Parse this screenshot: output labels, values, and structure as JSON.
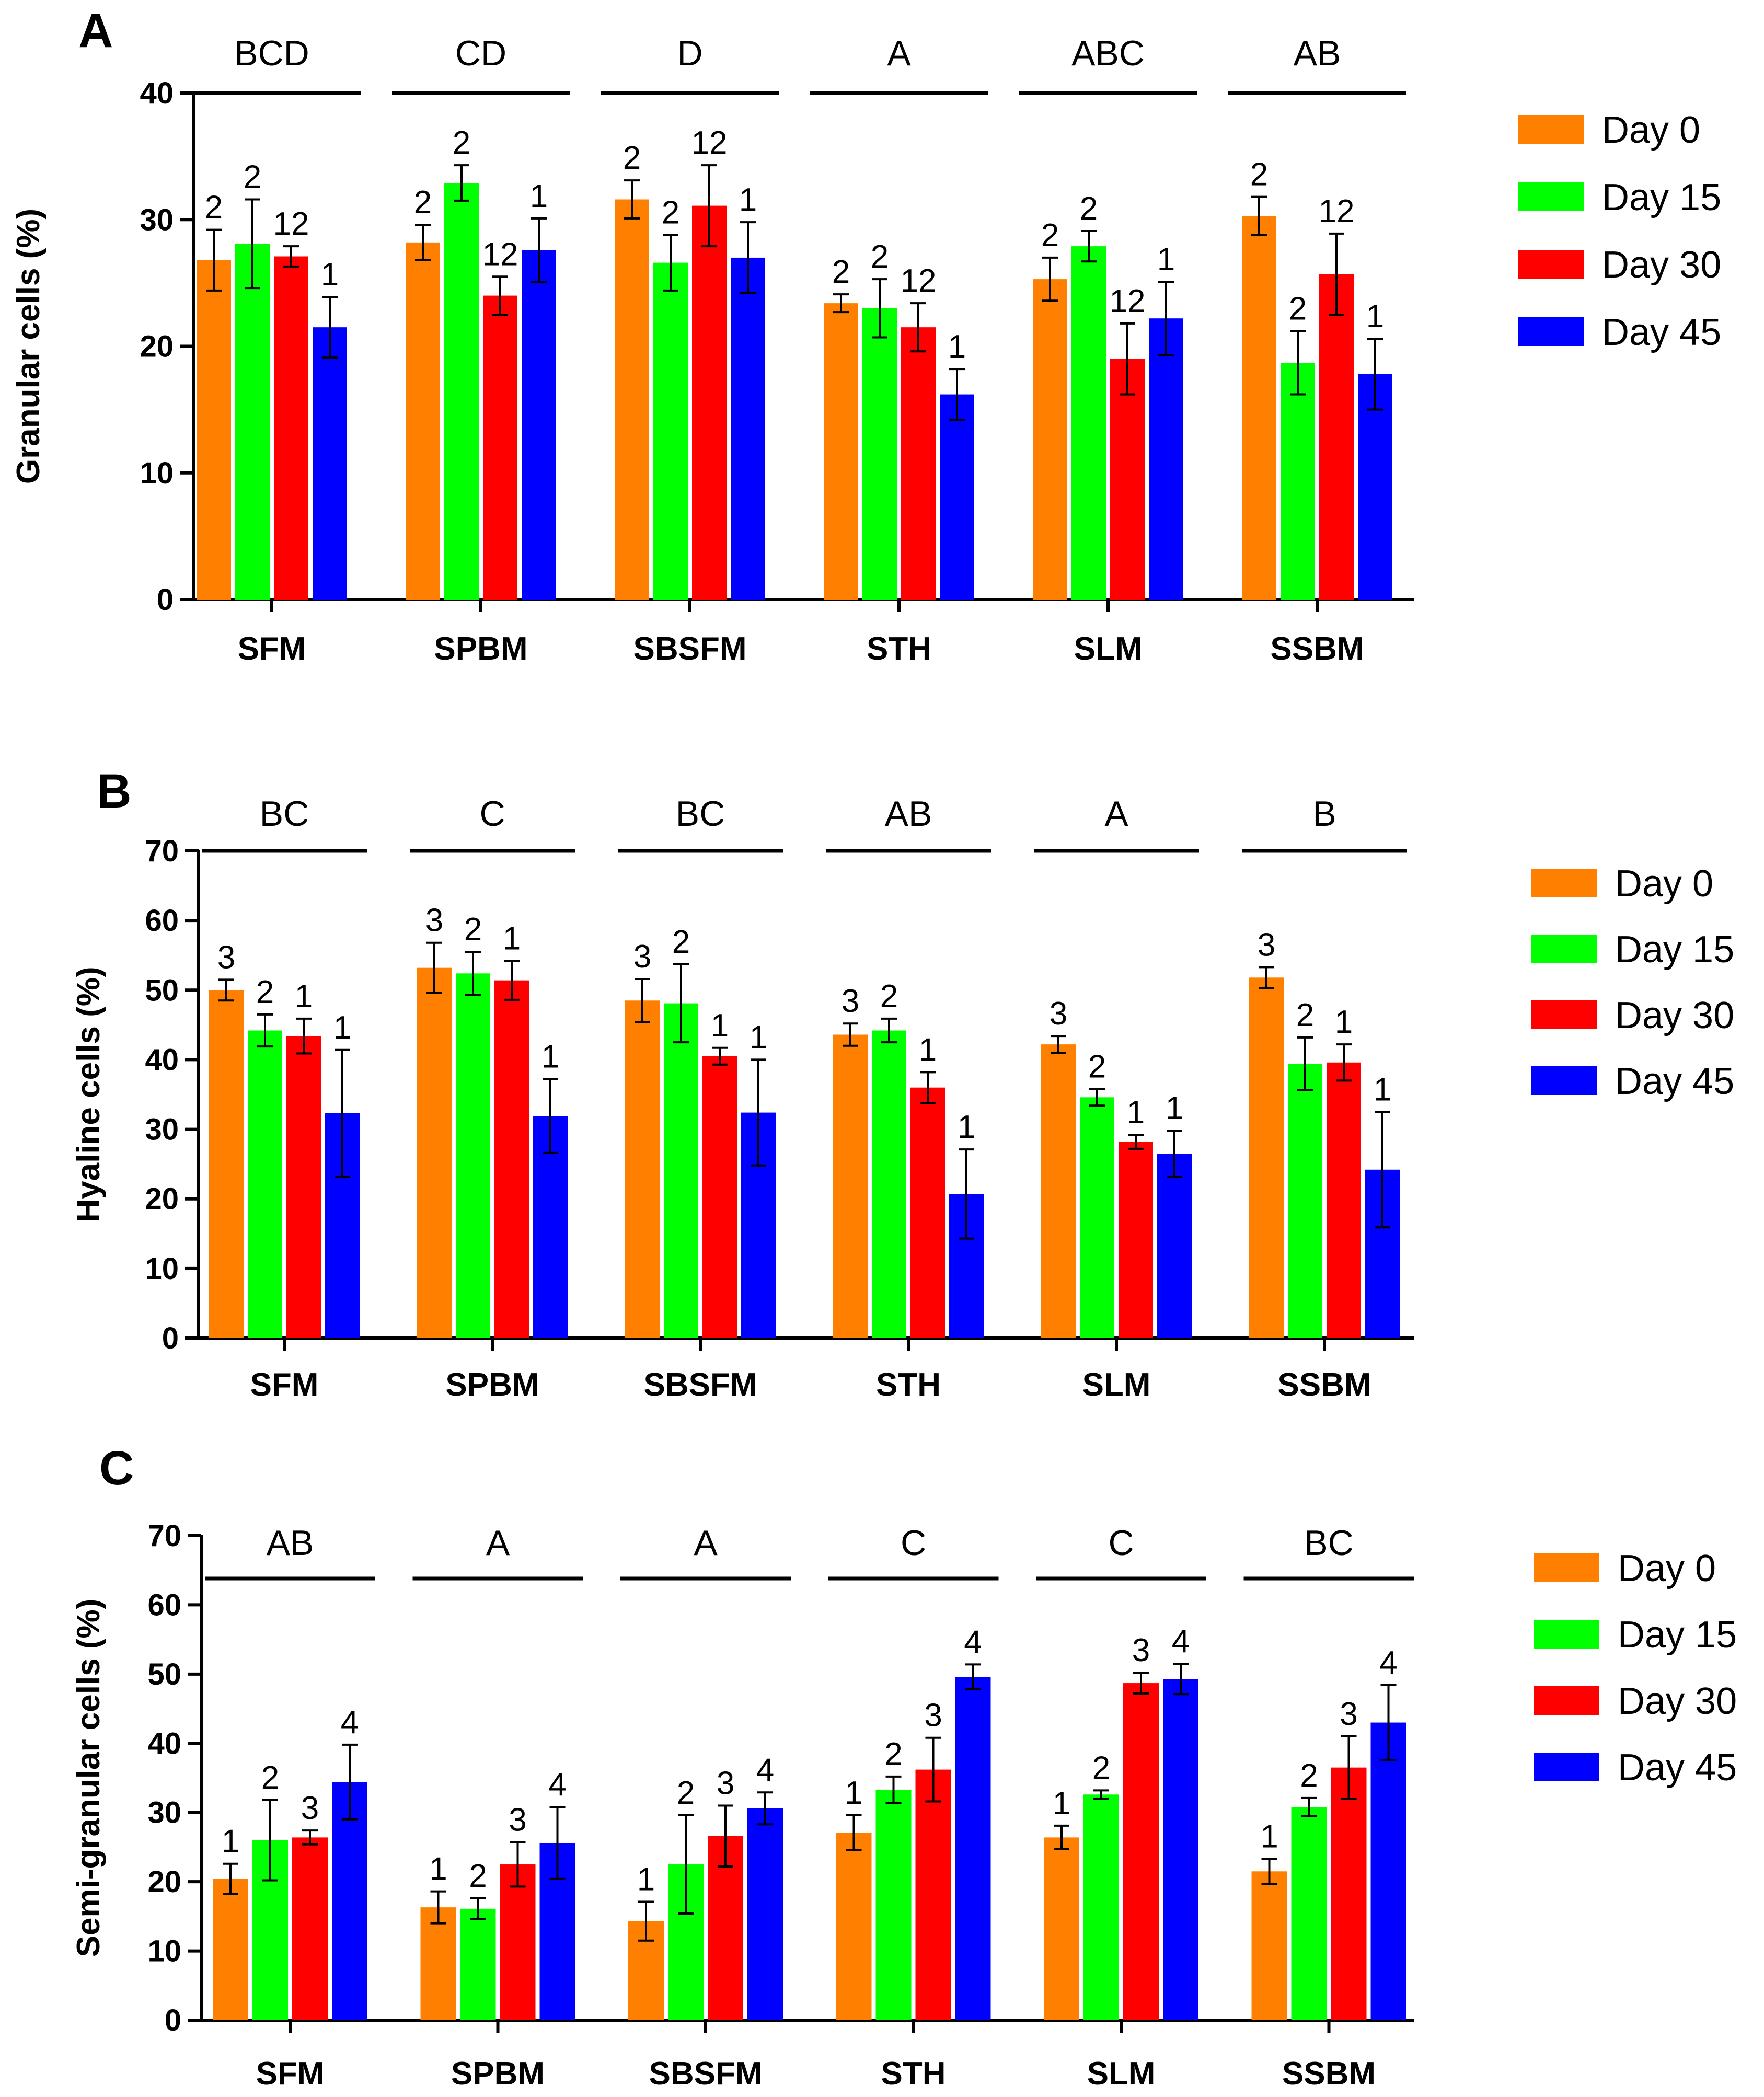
{
  "colors": {
    "Day 0": "#ff8000",
    "Day 15": "#00ff00",
    "Day 30": "#ff0000",
    "Day 45": "#0000ff",
    "axis": "#000000"
  },
  "chart_data": [
    {
      "type": "bar",
      "panel": "A",
      "ylabel": "Granular cells (%)",
      "ylim": [
        0,
        40
      ],
      "yticks": [
        0,
        10,
        20,
        30,
        40
      ],
      "categories": [
        "SFM",
        "SPBM",
        "SBSFM",
        "STH",
        "SLM",
        "SSBM"
      ],
      "group_letters": [
        "BCD",
        "CD",
        "D",
        "A",
        "ABC",
        "AB"
      ],
      "series": [
        {
          "name": "Day 0",
          "values": [
            26.8,
            28.2,
            31.6,
            23.4,
            25.3,
            30.3
          ],
          "errors": [
            2.4,
            1.4,
            1.5,
            0.7,
            1.7,
            1.5
          ],
          "labels": [
            "2",
            "2",
            "2",
            "2",
            "2",
            "2"
          ]
        },
        {
          "name": "Day 15",
          "values": [
            28.1,
            32.9,
            26.6,
            23.0,
            27.9,
            18.7
          ],
          "errors": [
            3.5,
            1.4,
            2.2,
            2.3,
            1.2,
            2.5
          ],
          "labels": [
            "2",
            "2",
            "2",
            "2",
            "2",
            "2"
          ]
        },
        {
          "name": "Day 30",
          "values": [
            27.1,
            24.0,
            31.1,
            21.5,
            19.0,
            25.7
          ],
          "errors": [
            0.8,
            1.5,
            3.2,
            1.9,
            2.8,
            3.2
          ],
          "labels": [
            "12",
            "12",
            "12",
            "12",
            "12",
            "12"
          ]
        },
        {
          "name": "Day 45",
          "values": [
            21.5,
            27.6,
            27.0,
            16.2,
            22.2,
            17.8
          ],
          "errors": [
            2.4,
            2.5,
            2.8,
            2.0,
            2.9,
            2.8
          ],
          "labels": [
            "1",
            "1",
            "1",
            "1",
            "1",
            "1"
          ]
        }
      ],
      "legend": [
        "Day 0",
        "Day 15",
        "Day 30",
        "Day 45"
      ],
      "legend_position": "right"
    },
    {
      "type": "bar",
      "panel": "B",
      "ylabel": "Hyaline cells (%)",
      "ylim": [
        0,
        70
      ],
      "yticks": [
        0,
        10,
        20,
        30,
        40,
        50,
        60,
        70
      ],
      "categories": [
        "SFM",
        "SPBM",
        "SBSFM",
        "STH",
        "SLM",
        "SSBM"
      ],
      "group_letters": [
        "BC",
        "C",
        "BC",
        "AB",
        "A",
        "B"
      ],
      "series": [
        {
          "name": "Day 0",
          "values": [
            50.0,
            53.2,
            48.5,
            43.6,
            42.2,
            51.8
          ],
          "errors": [
            1.5,
            3.6,
            3.1,
            1.6,
            1.2,
            1.5
          ],
          "labels": [
            "3",
            "3",
            "3",
            "3",
            "3",
            "3"
          ]
        },
        {
          "name": "Day 15",
          "values": [
            44.2,
            52.4,
            48.1,
            44.2,
            34.6,
            39.4
          ],
          "errors": [
            2.3,
            3.1,
            5.6,
            1.7,
            1.2,
            3.8
          ],
          "labels": [
            "2",
            "2",
            "2",
            "2",
            "2",
            "2"
          ]
        },
        {
          "name": "Day 30",
          "values": [
            43.4,
            51.4,
            40.5,
            36.0,
            28.2,
            39.6
          ],
          "errors": [
            2.5,
            2.8,
            1.2,
            2.2,
            1.0,
            2.6
          ],
          "labels": [
            "1",
            "1",
            "1",
            "1",
            "1",
            "1"
          ]
        },
        {
          "name": "Day 45",
          "values": [
            32.3,
            31.9,
            32.4,
            20.7,
            26.5,
            24.2
          ],
          "errors": [
            9.1,
            5.3,
            7.6,
            6.4,
            3.3,
            8.3
          ],
          "labels": [
            "1",
            "1",
            "1",
            "1",
            "1",
            "1"
          ]
        }
      ],
      "legend": [
        "Day 0",
        "Day 15",
        "Day 30",
        "Day 45"
      ],
      "legend_position": "right"
    },
    {
      "type": "bar",
      "panel": "C",
      "ylabel": "Semi-granular cells (%)",
      "ylim": [
        0,
        70
      ],
      "yticks": [
        0,
        10,
        20,
        30,
        40,
        50,
        60,
        70
      ],
      "categories": [
        "SFM",
        "SPBM",
        "SBSFM",
        "STH",
        "SLM",
        "SSBM"
      ],
      "group_letters": [
        "AB",
        "A",
        "A",
        "C",
        "C",
        "BC"
      ],
      "series": [
        {
          "name": "Day 0",
          "values": [
            20.4,
            16.3,
            14.3,
            27.1,
            26.4,
            21.5
          ],
          "errors": [
            2.2,
            2.3,
            2.8,
            2.5,
            1.7,
            1.8
          ],
          "labels": [
            "1",
            "1",
            "1",
            "1",
            "1",
            "1"
          ]
        },
        {
          "name": "Day 15",
          "values": [
            26.0,
            16.1,
            22.5,
            33.3,
            32.6,
            30.8
          ],
          "errors": [
            5.8,
            1.5,
            7.1,
            1.9,
            0.6,
            1.3
          ],
          "labels": [
            "2",
            "2",
            "2",
            "2",
            "2",
            "2"
          ]
        },
        {
          "name": "Day 30",
          "values": [
            26.4,
            22.5,
            26.6,
            36.2,
            48.7,
            36.5
          ],
          "errors": [
            1.0,
            3.2,
            4.4,
            4.6,
            1.5,
            4.5
          ],
          "labels": [
            "3",
            "3",
            "3",
            "3",
            "3",
            "3"
          ]
        },
        {
          "name": "Day 45",
          "values": [
            34.4,
            25.6,
            30.6,
            49.6,
            49.3,
            43.0
          ],
          "errors": [
            5.4,
            5.2,
            2.3,
            1.8,
            2.2,
            5.4
          ],
          "labels": [
            "4",
            "4",
            "4",
            "4",
            "4",
            "4"
          ]
        }
      ],
      "legend": [
        "Day 0",
        "Day 15",
        "Day 30",
        "Day 45"
      ],
      "legend_position": "right"
    }
  ]
}
